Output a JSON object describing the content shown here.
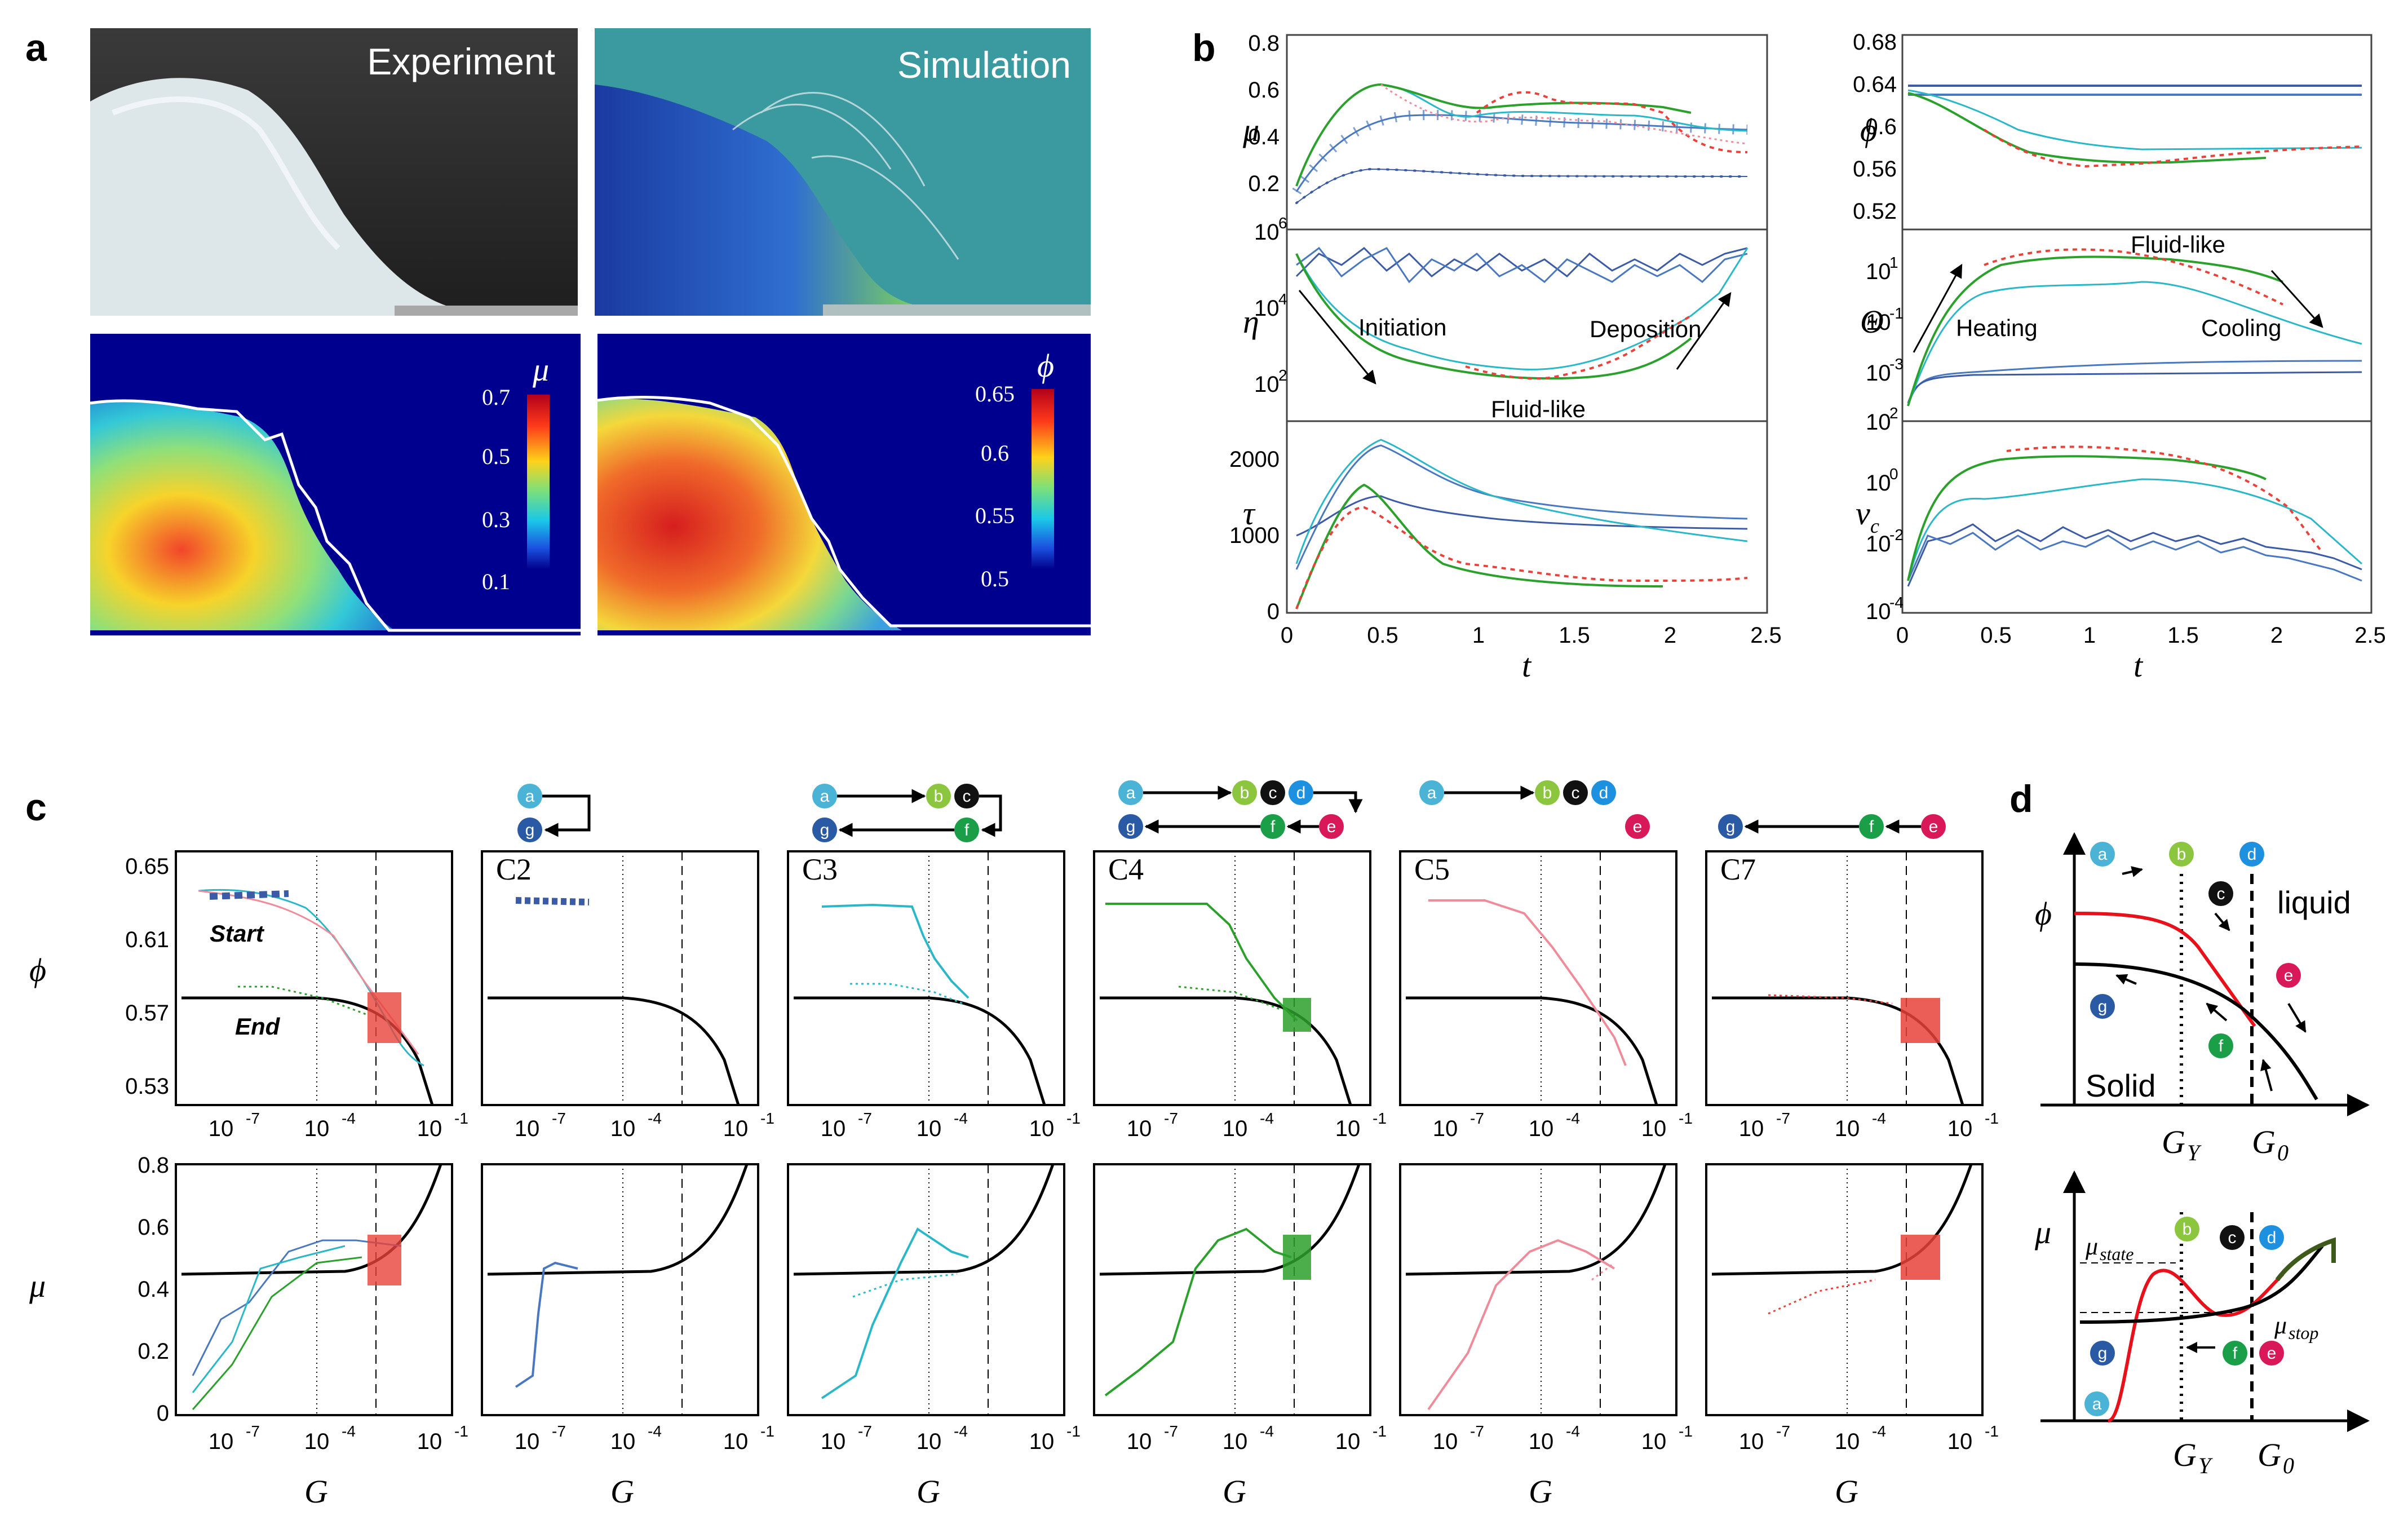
{
  "panels": {
    "a": "a",
    "b": "b",
    "c": "c",
    "d": "d"
  },
  "panel_a": {
    "experiment_title": "Experiment",
    "simulation_title": "Simulation",
    "mu_colorbar": {
      "symbol": "μ",
      "ticks": [
        "0.7",
        "0.5",
        "0.3",
        "0.1"
      ]
    },
    "phi_colorbar": {
      "symbol": "ϕ",
      "ticks": [
        "0.65",
        "0.6",
        "0.55",
        "0.5"
      ]
    }
  },
  "panel_b": {
    "x_ticks": [
      "0",
      "0.5",
      "1",
      "1.5",
      "2",
      "2.5"
    ],
    "xlabel": "t",
    "left": {
      "mu": {
        "ylabel": "μ",
        "ticks": [
          "0.8",
          "0.6",
          "0.4",
          "0.2"
        ]
      },
      "eta": {
        "ylabel": "η",
        "ticks_base": [
          "10",
          "10",
          "10"
        ],
        "ticks_exp": [
          "6",
          "4",
          "2"
        ],
        "annotations": [
          "Initiation",
          "Deposition",
          "Fluid-like"
        ]
      },
      "tau": {
        "ylabel": "τ",
        "ticks": [
          "2000",
          "1000",
          "0"
        ]
      }
    },
    "right": {
      "phi": {
        "ylabel": "ϕ",
        "ticks": [
          "0.68",
          "0.64",
          "0.6",
          "0.56",
          "0.52"
        ]
      },
      "theta": {
        "ylabel": "Θ",
        "ticks_base": [
          "10",
          "10",
          "10"
        ],
        "ticks_exp": [
          "1",
          "-1",
          "-3"
        ],
        "annotations": [
          "Fluid-like",
          "Heating",
          "Cooling"
        ]
      },
      "vc": {
        "ylabel": "v",
        "ylabel_sub": "c",
        "ticks_base": [
          "10",
          "10",
          "10",
          "10"
        ],
        "ticks_exp": [
          "2",
          "0",
          "-2",
          "-4"
        ]
      }
    }
  },
  "panel_c": {
    "cases": [
      "",
      "C2",
      "C3",
      "C4",
      "C5",
      "C7"
    ],
    "phi_ticks": [
      "0.65",
      "0.61",
      "0.57",
      "0.53"
    ],
    "mu_ticks": [
      "0.8",
      "0.6",
      "0.4",
      "0.2",
      "0"
    ],
    "x_tick_base": "10",
    "x_tick_exps": [
      "-7",
      "-4",
      "-1"
    ],
    "phi_label": "ϕ",
    "mu_label": "μ",
    "xlabel": "G",
    "start_label": "Start",
    "end_label": "End",
    "nodes": [
      "a",
      "b",
      "c",
      "d",
      "e",
      "f",
      "g"
    ]
  },
  "panel_d": {
    "phi_label": "ϕ",
    "mu_label": "μ",
    "liquid": "liquid",
    "solid": "Solid",
    "GY": "G",
    "GY_sub": "Y",
    "G0": "G",
    "G0_sub": "0",
    "mu_state": "μ",
    "mu_state_sub": "state",
    "mu_stop": "μ",
    "mu_stop_sub": "stop"
  },
  "colors": {
    "a": "#4bb3d6",
    "b": "#8cc63f",
    "c": "#111111",
    "d": "#1e90e0",
    "e": "#d9185a",
    "f": "#1a9f48",
    "g": "#2a5aa3",
    "blue_dark": "#3b5ba6",
    "blue": "#4a78c0",
    "cyan": "#2ab8c8",
    "green": "#2ca02c",
    "red": "#e8423a",
    "pink": "#f08c9a"
  }
}
